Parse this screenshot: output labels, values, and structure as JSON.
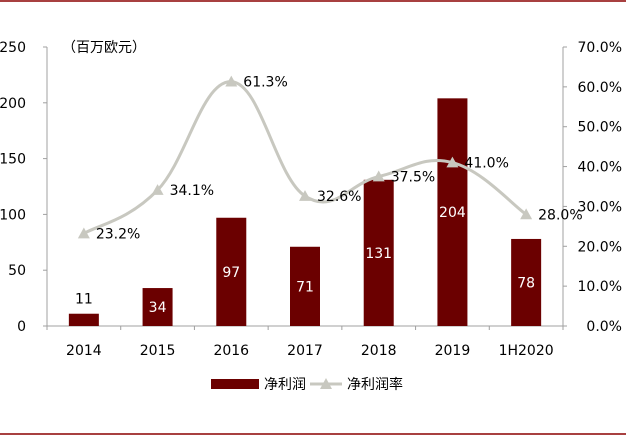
{
  "chart_data": {
    "type": "bar+line",
    "title": "",
    "unit_label": "（百万欧元）",
    "categories": [
      "2014",
      "2015",
      "2016",
      "2017",
      "2018",
      "2019",
      "1H2020"
    ],
    "series": [
      {
        "name": "净利润",
        "type": "bar",
        "axis": "left",
        "color": "#6b0000",
        "values": [
          11,
          34,
          97,
          71,
          131,
          204,
          78
        ],
        "labels": [
          "11",
          "34",
          "97",
          "71",
          "131",
          "204",
          "78"
        ]
      },
      {
        "name": "净利润率",
        "type": "line",
        "axis": "right",
        "color": "#c8c8c0",
        "values": [
          23.2,
          34.1,
          61.3,
          32.6,
          37.5,
          41.0,
          28.0
        ],
        "labels": [
          "23.2%",
          "34.1%",
          "61.3%",
          "32.6%",
          "37.5%",
          "41.0%",
          "28.0%"
        ]
      }
    ],
    "y_left": {
      "min": 0,
      "max": 250,
      "ticks": [
        "0",
        "50",
        "100",
        "150",
        "200",
        "250"
      ]
    },
    "y_right": {
      "min": 0,
      "max": 70,
      "ticks": [
        "0.0%",
        "10.0%",
        "20.0%",
        "30.0%",
        "40.0%",
        "50.0%",
        "60.0%",
        "70.0%"
      ]
    },
    "legend": {
      "placement": "bottom-center",
      "items": [
        "净利润",
        "净利润率"
      ]
    },
    "frame_color": "#8b0000",
    "grid": false
  }
}
